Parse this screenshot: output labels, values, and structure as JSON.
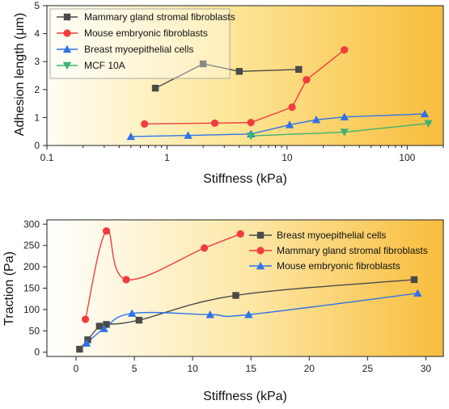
{
  "chart_data": [
    {
      "type": "line",
      "xscale": "log",
      "xlabel": "Stiffness (kPa)",
      "ylabel": "Adhesion length (μm)",
      "xlim": [
        0.1,
        200
      ],
      "ylim": [
        0,
        5
      ],
      "xticks": [
        0.1,
        1,
        10,
        100
      ],
      "xtick_labels": [
        "0.1",
        "1",
        "10",
        "100"
      ],
      "yticks": [
        0,
        1,
        2,
        3,
        4,
        5
      ],
      "ytick_labels": [
        "0",
        "1",
        "2",
        "3",
        "4",
        "5"
      ],
      "grid": false,
      "legend_position": "top-left",
      "background": "gradient light yellow to orange",
      "series": [
        {
          "name": "Mammary gland stromal fibroblasts",
          "color": "#4a4a4a",
          "marker": "square",
          "x": [
            0.8,
            2,
            4,
            12.5
          ],
          "y": [
            2.05,
            2.92,
            2.65,
            2.72
          ]
        },
        {
          "name": "Mouse embryonic fibroblasts",
          "color": "#f23c3c",
          "marker": "circle",
          "x": [
            0.65,
            2.5,
            5,
            11,
            14.5,
            30
          ],
          "y": [
            0.77,
            0.8,
            0.82,
            1.37,
            2.35,
            3.42
          ]
        },
        {
          "name": "Breast myoepithelial cells",
          "color": "#2f73e6",
          "marker": "triangle-up",
          "x": [
            0.5,
            1.5,
            5,
            10.5,
            17.5,
            30,
            140
          ],
          "y": [
            0.32,
            0.36,
            0.41,
            0.74,
            0.92,
            1.02,
            1.13
          ]
        },
        {
          "name": "MCF 10A",
          "color": "#3cb371",
          "marker": "triangle-down",
          "x": [
            5,
            30,
            150
          ],
          "y": [
            0.34,
            0.48,
            0.79
          ]
        }
      ]
    },
    {
      "type": "line",
      "xlabel": "Stiffness (kPa)",
      "ylabel": "Traction (Pa)",
      "xlim": [
        -2.5,
        31.5
      ],
      "ylim": [
        -10,
        310
      ],
      "xticks": [
        0,
        5,
        10,
        15,
        20,
        25,
        30
      ],
      "xtick_labels": [
        "0",
        "5",
        "10",
        "15",
        "20",
        "25",
        "30"
      ],
      "yticks": [
        0,
        50,
        100,
        150,
        200,
        250,
        300
      ],
      "ytick_labels": [
        "0",
        "50",
        "100",
        "150",
        "200",
        "250",
        "300"
      ],
      "grid": false,
      "legend_position": "top-right",
      "background": "gradient white to orange",
      "series": [
        {
          "name": "Breast myoepithelial cells",
          "color": "#4a4a4a",
          "marker": "square",
          "x": [
            0.3,
            1,
            2,
            2.6,
            5.4,
            13.7,
            29
          ],
          "y": [
            7,
            29,
            61,
            65,
            75,
            133,
            170
          ]
        },
        {
          "name": "Mammary gland stromal fibroblasts",
          "color": "#f23c3c",
          "marker": "circle",
          "x": [
            0.8,
            2.6,
            4.3,
            11,
            14.1
          ],
          "y": [
            77,
            284,
            170,
            244,
            277
          ]
        },
        {
          "name": "Mouse embryonic fibroblasts",
          "color": "#2f73e6",
          "marker": "triangle-up",
          "x": [
            0.9,
            2.4,
            4.8,
            11.5,
            14.8,
            29.3
          ],
          "y": [
            21,
            55,
            91,
            88,
            88,
            138
          ]
        }
      ]
    }
  ]
}
